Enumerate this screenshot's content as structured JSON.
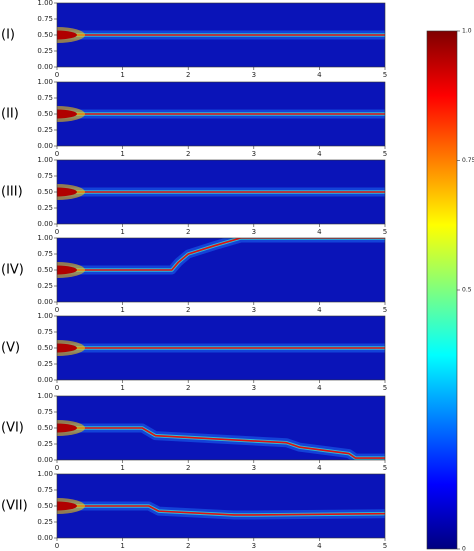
{
  "chart_data": [
    {
      "type": "line",
      "label": "(I)",
      "xlim": [
        0,
        5
      ],
      "ylim": [
        0,
        1
      ],
      "xticks": [
        0,
        1,
        2,
        3,
        4,
        5
      ],
      "yticks": [
        {
          "value": 0,
          "label": "0.00"
        },
        {
          "value": 0.25,
          "label": "0.25"
        },
        {
          "value": 0.5,
          "label": "0.50"
        },
        {
          "value": 0.75,
          "label": "0.75"
        },
        {
          "value": 1,
          "label": "1.00"
        }
      ],
      "x": [
        0,
        5
      ],
      "values": [
        0.5,
        0.5
      ]
    },
    {
      "type": "line",
      "label": "(II)",
      "xlim": [
        0,
        5
      ],
      "ylim": [
        0,
        1
      ],
      "xticks": [
        0,
        1,
        2,
        3,
        4,
        5
      ],
      "yticks": [
        {
          "value": 0,
          "label": "0.00"
        },
        {
          "value": 0.25,
          "label": "0.25"
        },
        {
          "value": 0.5,
          "label": "0.50"
        },
        {
          "value": 0.75,
          "label": "0.75"
        },
        {
          "value": 1,
          "label": "1.00"
        }
      ],
      "x": [
        0,
        5
      ],
      "values": [
        0.5,
        0.5
      ]
    },
    {
      "type": "line",
      "label": "(III)",
      "xlim": [
        0,
        5
      ],
      "ylim": [
        0,
        1
      ],
      "xticks": [
        0,
        1,
        2,
        3,
        4,
        5
      ],
      "yticks": [
        {
          "value": 0,
          "label": "0.00"
        },
        {
          "value": 0.25,
          "label": "0.25"
        },
        {
          "value": 0.5,
          "label": "0.50"
        },
        {
          "value": 0.75,
          "label": "0.75"
        },
        {
          "value": 1,
          "label": "1.00"
        }
      ],
      "x": [
        0,
        5
      ],
      "values": [
        0.5,
        0.5
      ]
    },
    {
      "type": "line",
      "label": "(IV)",
      "xlim": [
        0,
        5
      ],
      "ylim": [
        0,
        1
      ],
      "xticks": [
        0,
        1,
        2,
        3,
        4,
        5
      ],
      "yticks": [
        {
          "value": 0,
          "label": "0.00"
        },
        {
          "value": 0.25,
          "label": "0.25"
        },
        {
          "value": 0.5,
          "label": "0.50"
        },
        {
          "value": 0.75,
          "label": "0.75"
        },
        {
          "value": 1,
          "label": "1.00"
        }
      ],
      "x": [
        0,
        1.75,
        1.85,
        2.0,
        2.4,
        2.8,
        5
      ],
      "values": [
        0.5,
        0.5,
        0.62,
        0.75,
        0.88,
        1.0,
        1.0
      ]
    },
    {
      "type": "line",
      "label": "(V)",
      "xlim": [
        0,
        5
      ],
      "ylim": [
        0,
        1
      ],
      "xticks": [
        0,
        1,
        2,
        3,
        4,
        5
      ],
      "yticks": [
        {
          "value": 0,
          "label": "0.00"
        },
        {
          "value": 0.25,
          "label": "0.25"
        },
        {
          "value": 0.5,
          "label": "0.50"
        },
        {
          "value": 0.75,
          "label": "0.75"
        },
        {
          "value": 1,
          "label": "1.00"
        }
      ],
      "x": [
        0,
        5
      ],
      "values": [
        0.5,
        0.5
      ]
    },
    {
      "type": "line",
      "label": "(VI)",
      "xlim": [
        0,
        5
      ],
      "ylim": [
        0,
        1
      ],
      "xticks": [
        0,
        1,
        2,
        3,
        4,
        5
      ],
      "yticks": [
        {
          "value": 0,
          "label": "0.00"
        },
        {
          "value": 0.25,
          "label": "0.25"
        },
        {
          "value": 0.5,
          "label": "0.50"
        },
        {
          "value": 0.75,
          "label": "0.75"
        },
        {
          "value": 1,
          "label": "1.00"
        }
      ],
      "x": [
        0,
        1.3,
        1.5,
        3.5,
        3.7,
        4.45,
        4.55,
        5
      ],
      "values": [
        0.5,
        0.5,
        0.38,
        0.27,
        0.2,
        0.1,
        0.03,
        0.03
      ]
    },
    {
      "type": "line",
      "label": "(VII)",
      "xlim": [
        0,
        5
      ],
      "ylim": [
        0,
        1
      ],
      "xticks": [
        0,
        1,
        2,
        3,
        4,
        5
      ],
      "yticks": [
        {
          "value": 0,
          "label": "0.00"
        },
        {
          "value": 0.25,
          "label": "0.25"
        },
        {
          "value": 0.5,
          "label": "0.50"
        },
        {
          "value": 0.75,
          "label": "0.75"
        },
        {
          "value": 1,
          "label": "1.00"
        }
      ],
      "x": [
        0,
        1.4,
        1.55,
        2.7,
        3.0,
        5
      ],
      "values": [
        0.5,
        0.5,
        0.42,
        0.36,
        0.36,
        0.38
      ]
    },
    {
      "type": "colorbar",
      "ylim": [
        0,
        1
      ],
      "yticks": [
        0,
        0.5,
        0.75,
        {
          "value": 1,
          "label": "1.0"
        }
      ],
      "colors": [
        "#00007f",
        "#0000ff",
        "#007fff",
        "#00ffff",
        "#7fff7f",
        "#ffff00",
        "#ff7f00",
        "#ff0000",
        "#7f0000"
      ]
    }
  ]
}
